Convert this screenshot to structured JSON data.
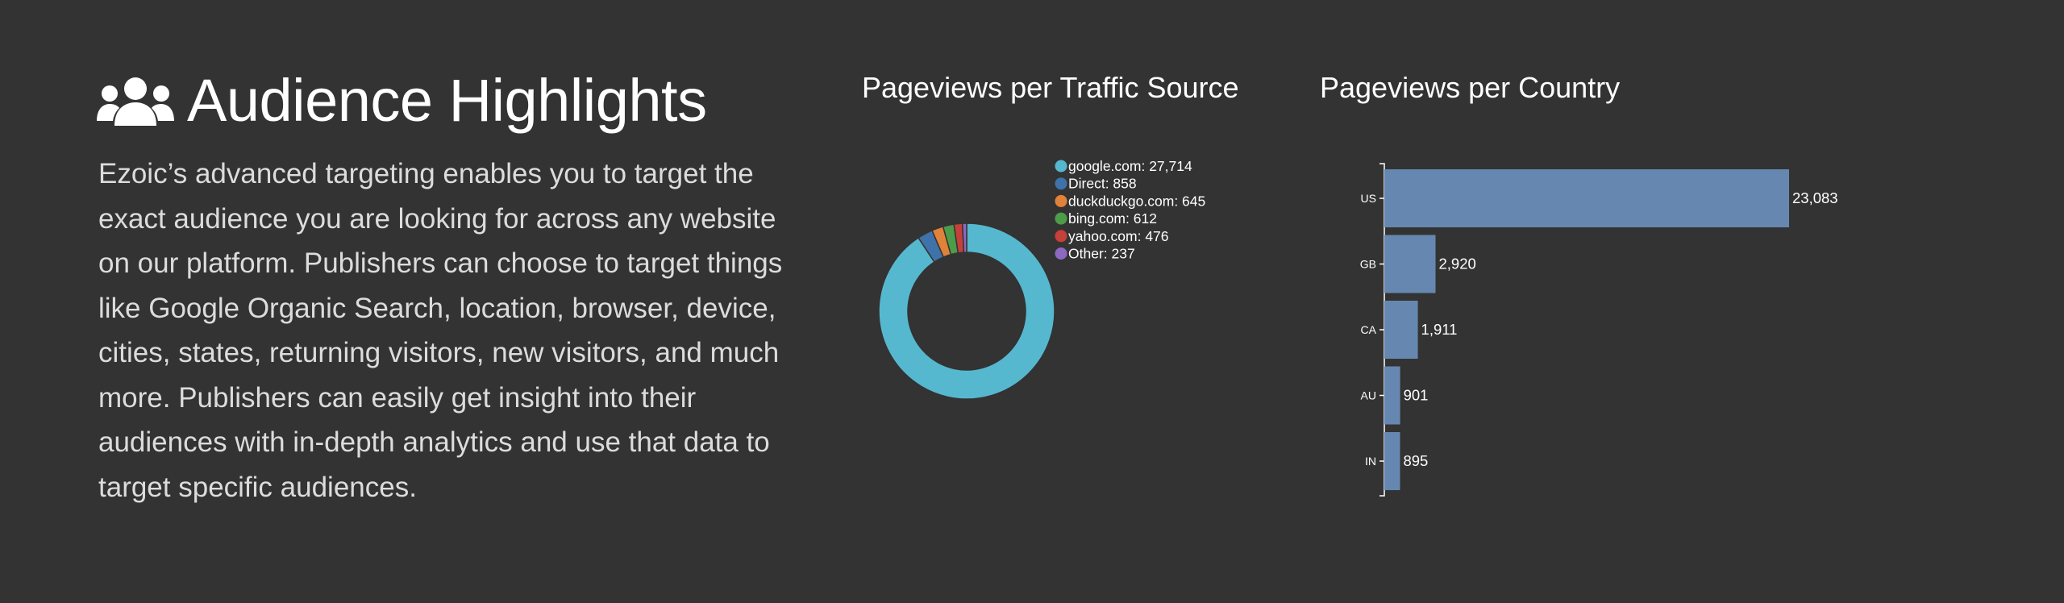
{
  "section": {
    "title": "Audience Highlights",
    "icon": "users-icon",
    "description": "Ezoic’s advanced targeting enables you to target the exact audience you are looking for across any website on our platform. Publishers can choose to target things like Google Organic Search, location, browser, device, cities, states, returning visitors, new visitors, and much more. Publishers can easily get insight into their audiences with in-depth analytics and use that data to target specific audiences."
  },
  "colors": {
    "background": "#333333",
    "bar": "#6688b0",
    "google": "#56b8cf",
    "direct": "#3f72a8",
    "duckduckgo": "#e0823a",
    "bing": "#4c9c49",
    "yahoo": "#c5403a",
    "other": "#8e67c0"
  },
  "chart_data": [
    {
      "type": "pie",
      "title": "Pageviews per Traffic Source",
      "categories": [
        "google.com",
        "Direct",
        "duckduckgo.com",
        "bing.com",
        "yahoo.com",
        "Other"
      ],
      "values": [
        27714,
        858,
        645,
        612,
        476,
        237
      ],
      "legend": [
        "google.com: 27,714",
        "Direct: 858",
        "duckduckgo.com: 645",
        "bing.com: 612",
        "yahoo.com: 476",
        "Other: 237"
      ],
      "colors": [
        "#56b8cf",
        "#3f72a8",
        "#e0823a",
        "#4c9c49",
        "#c5403a",
        "#8e67c0"
      ],
      "legend_position": "top-right"
    },
    {
      "type": "bar",
      "orientation": "horizontal",
      "title": "Pageviews per Country",
      "categories": [
        "US",
        "GB",
        "CA",
        "AU",
        "IN"
      ],
      "values": [
        23083,
        2920,
        1911,
        901,
        895
      ],
      "value_labels": [
        "23,083",
        "2,920",
        "1,911",
        "901",
        "895"
      ],
      "xlim": [
        0,
        23083
      ]
    }
  ]
}
